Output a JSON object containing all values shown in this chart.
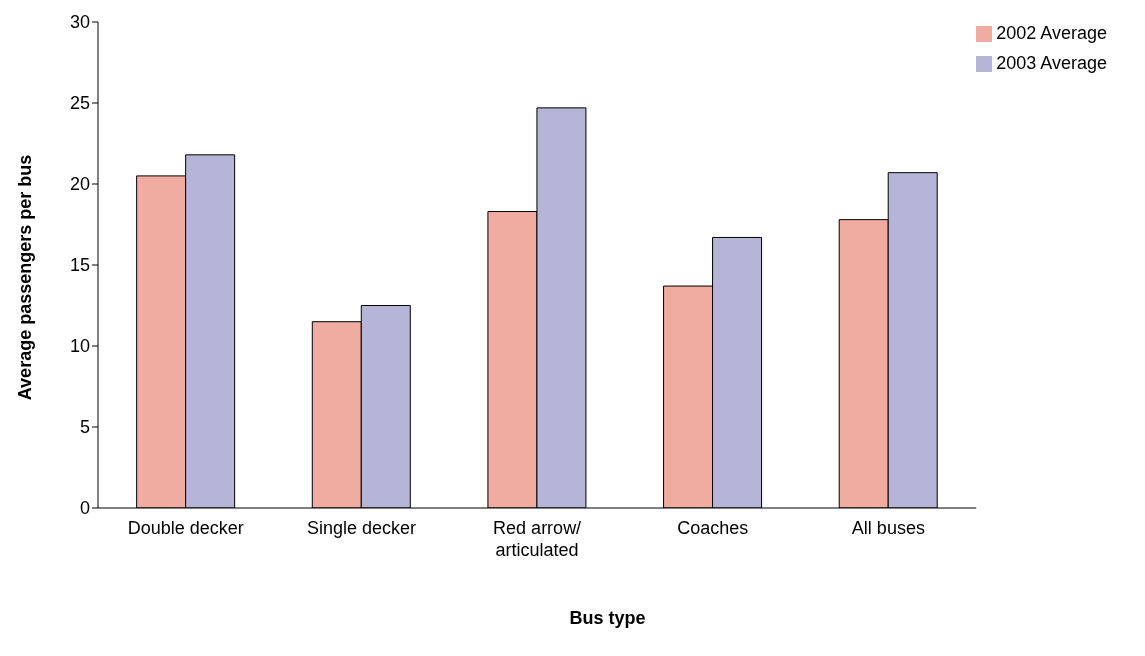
{
  "chart_data": {
    "type": "bar",
    "xlabel": "Bus type",
    "ylabel": "Average passengers per bus",
    "categories": [
      "Double decker",
      "Single decker",
      "Red arrow/ articulated",
      "Coaches",
      "All buses"
    ],
    "series": [
      {
        "name": "2002 Average",
        "color": "#f0aca0",
        "values": [
          20.5,
          11.5,
          18.3,
          13.7,
          17.8
        ]
      },
      {
        "name": "2003 Average",
        "color": "#b7b5d7",
        "values": [
          21.8,
          12.5,
          24.7,
          16.7,
          20.7
        ]
      }
    ],
    "ylim": [
      0,
      30
    ],
    "yticks": [
      0,
      5,
      10,
      15,
      20,
      25,
      30
    ],
    "grid": false,
    "legend": "top right"
  }
}
